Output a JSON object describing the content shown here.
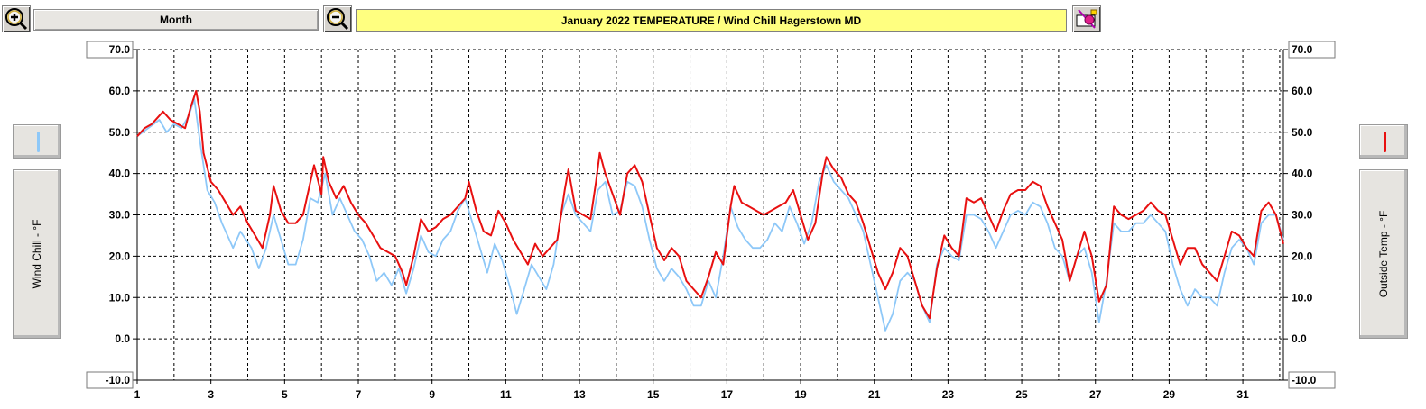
{
  "toolbar": {
    "zoom_in_icon": "zoom-in-icon",
    "zoom_out_icon": "zoom-out-icon",
    "print_icon": "print-icon",
    "period": "Month"
  },
  "chart_data": {
    "type": "line",
    "title": "January 2022  TEMPERATURE / Wind Chill Hagerstown MD",
    "y_left_label": "Wind Chill - °F",
    "y_right_label": "Outside Temp - °F",
    "ylim": [
      -10,
      70
    ],
    "y_ticks": [
      "70.0",
      "60.0",
      "50.0",
      "40.0",
      "30.0",
      "20.0",
      "10.0",
      "0.0",
      "-10.0"
    ],
    "y_tick_values": [
      70,
      60,
      50,
      40,
      30,
      20,
      10,
      0,
      -10
    ],
    "xlim": [
      1,
      32.1
    ],
    "x_ticks": [
      "1",
      "3",
      "5",
      "7",
      "9",
      "11",
      "13",
      "15",
      "17",
      "19",
      "21",
      "23",
      "25",
      "27",
      "29",
      "31"
    ],
    "x_tick_values": [
      1,
      3,
      5,
      7,
      9,
      11,
      13,
      15,
      17,
      19,
      21,
      23,
      25,
      27,
      29,
      31
    ],
    "grid": true,
    "series": [
      {
        "name": "Wind Chill - °F",
        "color": "#8ec8f8",
        "points": [
          [
            1,
            49
          ],
          [
            1.3,
            51
          ],
          [
            1.6,
            53
          ],
          [
            1.8,
            50
          ],
          [
            2,
            52
          ],
          [
            2.2,
            51
          ],
          [
            2.4,
            54
          ],
          [
            2.55,
            58
          ],
          [
            2.7,
            48
          ],
          [
            2.9,
            36
          ],
          [
            3.1,
            33
          ],
          [
            3.3,
            28
          ],
          [
            3.6,
            22
          ],
          [
            3.8,
            26
          ],
          [
            4.1,
            22
          ],
          [
            4.3,
            17
          ],
          [
            4.5,
            22
          ],
          [
            4.7,
            30
          ],
          [
            4.9,
            24
          ],
          [
            5.1,
            18
          ],
          [
            5.3,
            18
          ],
          [
            5.5,
            24
          ],
          [
            5.7,
            34
          ],
          [
            5.9,
            33
          ],
          [
            6.1,
            40
          ],
          [
            6.3,
            30
          ],
          [
            6.5,
            34
          ],
          [
            6.7,
            30
          ],
          [
            6.9,
            26
          ],
          [
            7.1,
            24
          ],
          [
            7.3,
            20
          ],
          [
            7.5,
            14
          ],
          [
            7.7,
            16
          ],
          [
            7.9,
            13
          ],
          [
            8.1,
            17
          ],
          [
            8.3,
            11
          ],
          [
            8.5,
            17
          ],
          [
            8.7,
            25
          ],
          [
            8.9,
            21
          ],
          [
            9.1,
            20
          ],
          [
            9.3,
            24
          ],
          [
            9.5,
            26
          ],
          [
            9.7,
            31
          ],
          [
            9.9,
            34
          ],
          [
            10.1,
            28
          ],
          [
            10.3,
            22
          ],
          [
            10.5,
            16
          ],
          [
            10.7,
            23
          ],
          [
            10.9,
            19
          ],
          [
            11.1,
            13
          ],
          [
            11.3,
            6
          ],
          [
            11.5,
            12
          ],
          [
            11.7,
            18
          ],
          [
            11.9,
            15
          ],
          [
            12.1,
            12
          ],
          [
            12.3,
            18
          ],
          [
            12.5,
            30
          ],
          [
            12.7,
            35
          ],
          [
            12.9,
            30
          ],
          [
            13.1,
            28
          ],
          [
            13.3,
            26
          ],
          [
            13.5,
            36
          ],
          [
            13.7,
            38
          ],
          [
            13.9,
            30
          ],
          [
            14.1,
            31
          ],
          [
            14.3,
            38
          ],
          [
            14.5,
            37
          ],
          [
            14.7,
            32
          ],
          [
            14.9,
            24
          ],
          [
            15.1,
            17
          ],
          [
            15.3,
            14
          ],
          [
            15.5,
            17
          ],
          [
            15.7,
            15
          ],
          [
            15.9,
            12
          ],
          [
            16.1,
            8
          ],
          [
            16.3,
            8
          ],
          [
            16.5,
            14
          ],
          [
            16.7,
            10
          ],
          [
            16.9,
            20
          ],
          [
            17.1,
            32
          ],
          [
            17.3,
            27
          ],
          [
            17.5,
            24
          ],
          [
            17.7,
            22
          ],
          [
            17.9,
            22
          ],
          [
            18.1,
            24
          ],
          [
            18.3,
            28
          ],
          [
            18.5,
            26
          ],
          [
            18.7,
            32
          ],
          [
            18.9,
            28
          ],
          [
            19.1,
            23
          ],
          [
            19.3,
            28
          ],
          [
            19.5,
            38
          ],
          [
            19.7,
            42
          ],
          [
            19.9,
            38
          ],
          [
            20.1,
            36
          ],
          [
            20.3,
            34
          ],
          [
            20.5,
            30
          ],
          [
            20.7,
            26
          ],
          [
            20.9,
            18
          ],
          [
            21.1,
            10
          ],
          [
            21.3,
            2
          ],
          [
            21.5,
            6
          ],
          [
            21.7,
            14
          ],
          [
            21.9,
            16
          ],
          [
            22.1,
            14
          ],
          [
            22.3,
            8
          ],
          [
            22.5,
            4
          ],
          [
            22.7,
            18
          ],
          [
            22.9,
            22
          ],
          [
            23.1,
            20
          ],
          [
            23.3,
            19
          ],
          [
            23.5,
            30
          ],
          [
            23.7,
            30
          ],
          [
            23.9,
            29
          ],
          [
            24.1,
            26
          ],
          [
            24.3,
            22
          ],
          [
            24.5,
            26
          ],
          [
            24.7,
            30
          ],
          [
            24.9,
            31
          ],
          [
            25.1,
            30
          ],
          [
            25.3,
            33
          ],
          [
            25.5,
            32
          ],
          [
            25.7,
            28
          ],
          [
            25.9,
            22
          ],
          [
            26.1,
            20
          ],
          [
            26.3,
            14
          ],
          [
            26.5,
            20
          ],
          [
            26.7,
            22
          ],
          [
            26.9,
            16
          ],
          [
            27.1,
            4
          ],
          [
            27.3,
            14
          ],
          [
            27.5,
            28
          ],
          [
            27.7,
            26
          ],
          [
            27.9,
            26
          ],
          [
            28.1,
            28
          ],
          [
            28.3,
            28
          ],
          [
            28.5,
            30
          ],
          [
            28.7,
            28
          ],
          [
            28.9,
            26
          ],
          [
            29.1,
            18
          ],
          [
            29.3,
            12
          ],
          [
            29.5,
            8
          ],
          [
            29.7,
            12
          ],
          [
            29.9,
            10
          ],
          [
            30.1,
            10
          ],
          [
            30.3,
            8
          ],
          [
            30.5,
            16
          ],
          [
            30.7,
            22
          ],
          [
            30.9,
            24
          ],
          [
            31.1,
            22
          ],
          [
            31.3,
            18
          ],
          [
            31.5,
            28
          ],
          [
            31.7,
            30
          ],
          [
            31.9,
            30
          ],
          [
            32.1,
            24
          ]
        ]
      },
      {
        "name": "Outside Temp - °F",
        "color": "#e81010",
        "points": [
          [
            1,
            49
          ],
          [
            1.2,
            51
          ],
          [
            1.4,
            52
          ],
          [
            1.6,
            54
          ],
          [
            1.7,
            55
          ],
          [
            1.9,
            53
          ],
          [
            2.1,
            52
          ],
          [
            2.3,
            51
          ],
          [
            2.45,
            56
          ],
          [
            2.6,
            60
          ],
          [
            2.7,
            55
          ],
          [
            2.8,
            45
          ],
          [
            3,
            38
          ],
          [
            3.2,
            36
          ],
          [
            3.4,
            33
          ],
          [
            3.6,
            30
          ],
          [
            3.8,
            32
          ],
          [
            4,
            28
          ],
          [
            4.2,
            25
          ],
          [
            4.4,
            22
          ],
          [
            4.6,
            30
          ],
          [
            4.7,
            37
          ],
          [
            4.9,
            31
          ],
          [
            5.1,
            28
          ],
          [
            5.3,
            28
          ],
          [
            5.5,
            30
          ],
          [
            5.7,
            38
          ],
          [
            5.8,
            42
          ],
          [
            6,
            35
          ],
          [
            6.05,
            44
          ],
          [
            6.2,
            38
          ],
          [
            6.4,
            34
          ],
          [
            6.6,
            37
          ],
          [
            6.8,
            33
          ],
          [
            7,
            30
          ],
          [
            7.2,
            28
          ],
          [
            7.4,
            25
          ],
          [
            7.6,
            22
          ],
          [
            7.8,
            21
          ],
          [
            8,
            20
          ],
          [
            8.2,
            16
          ],
          [
            8.3,
            13
          ],
          [
            8.5,
            20
          ],
          [
            8.7,
            29
          ],
          [
            8.9,
            26
          ],
          [
            9.1,
            27
          ],
          [
            9.3,
            29
          ],
          [
            9.5,
            30
          ],
          [
            9.7,
            32
          ],
          [
            9.9,
            34
          ],
          [
            10,
            38
          ],
          [
            10.2,
            31
          ],
          [
            10.4,
            26
          ],
          [
            10.6,
            25
          ],
          [
            10.8,
            31
          ],
          [
            11,
            28
          ],
          [
            11.2,
            24
          ],
          [
            11.4,
            21
          ],
          [
            11.6,
            18
          ],
          [
            11.8,
            23
          ],
          [
            12,
            20
          ],
          [
            12.2,
            22
          ],
          [
            12.4,
            24
          ],
          [
            12.6,
            36
          ],
          [
            12.7,
            41
          ],
          [
            12.9,
            31
          ],
          [
            13.1,
            30
          ],
          [
            13.3,
            29
          ],
          [
            13.45,
            38
          ],
          [
            13.55,
            45
          ],
          [
            13.7,
            40
          ],
          [
            13.9,
            35
          ],
          [
            14.1,
            30
          ],
          [
            14.3,
            40
          ],
          [
            14.5,
            42
          ],
          [
            14.7,
            38
          ],
          [
            14.9,
            30
          ],
          [
            15.1,
            22
          ],
          [
            15.3,
            19
          ],
          [
            15.5,
            22
          ],
          [
            15.7,
            20
          ],
          [
            15.9,
            14
          ],
          [
            16.1,
            12
          ],
          [
            16.3,
            10
          ],
          [
            16.5,
            15
          ],
          [
            16.7,
            21
          ],
          [
            16.9,
            18
          ],
          [
            17.1,
            32
          ],
          [
            17.2,
            37
          ],
          [
            17.4,
            33
          ],
          [
            17.6,
            32
          ],
          [
            17.8,
            31
          ],
          [
            18,
            30
          ],
          [
            18.2,
            31
          ],
          [
            18.4,
            32
          ],
          [
            18.6,
            33
          ],
          [
            18.8,
            36
          ],
          [
            19,
            30
          ],
          [
            19.2,
            24
          ],
          [
            19.4,
            28
          ],
          [
            19.6,
            40
          ],
          [
            19.7,
            44
          ],
          [
            19.9,
            41
          ],
          [
            20.1,
            39
          ],
          [
            20.3,
            35
          ],
          [
            20.5,
            33
          ],
          [
            20.7,
            28
          ],
          [
            20.9,
            22
          ],
          [
            21.1,
            16
          ],
          [
            21.3,
            12
          ],
          [
            21.5,
            16
          ],
          [
            21.7,
            22
          ],
          [
            21.9,
            20
          ],
          [
            22.1,
            14
          ],
          [
            22.3,
            8
          ],
          [
            22.5,
            5
          ],
          [
            22.7,
            17
          ],
          [
            22.9,
            25
          ],
          [
            23.1,
            22
          ],
          [
            23.3,
            20
          ],
          [
            23.5,
            34
          ],
          [
            23.7,
            33
          ],
          [
            23.9,
            34
          ],
          [
            24.1,
            30
          ],
          [
            24.3,
            26
          ],
          [
            24.5,
            31
          ],
          [
            24.7,
            35
          ],
          [
            24.9,
            36
          ],
          [
            25.1,
            36
          ],
          [
            25.3,
            38
          ],
          [
            25.5,
            37
          ],
          [
            25.7,
            32
          ],
          [
            25.9,
            28
          ],
          [
            26.1,
            24
          ],
          [
            26.3,
            14
          ],
          [
            26.5,
            20
          ],
          [
            26.7,
            26
          ],
          [
            26.9,
            20
          ],
          [
            27.1,
            9
          ],
          [
            27.3,
            13
          ],
          [
            27.5,
            32
          ],
          [
            27.7,
            30
          ],
          [
            27.9,
            29
          ],
          [
            28.1,
            30
          ],
          [
            28.3,
            31
          ],
          [
            28.5,
            33
          ],
          [
            28.7,
            31
          ],
          [
            28.9,
            30
          ],
          [
            29.1,
            24
          ],
          [
            29.3,
            18
          ],
          [
            29.5,
            22
          ],
          [
            29.7,
            22
          ],
          [
            29.9,
            18
          ],
          [
            30.1,
            16
          ],
          [
            30.3,
            14
          ],
          [
            30.5,
            20
          ],
          [
            30.7,
            26
          ],
          [
            30.9,
            25
          ],
          [
            31.1,
            22
          ],
          [
            31.3,
            20
          ],
          [
            31.5,
            31
          ],
          [
            31.7,
            33
          ],
          [
            31.9,
            30
          ],
          [
            32.1,
            23
          ]
        ]
      }
    ]
  }
}
